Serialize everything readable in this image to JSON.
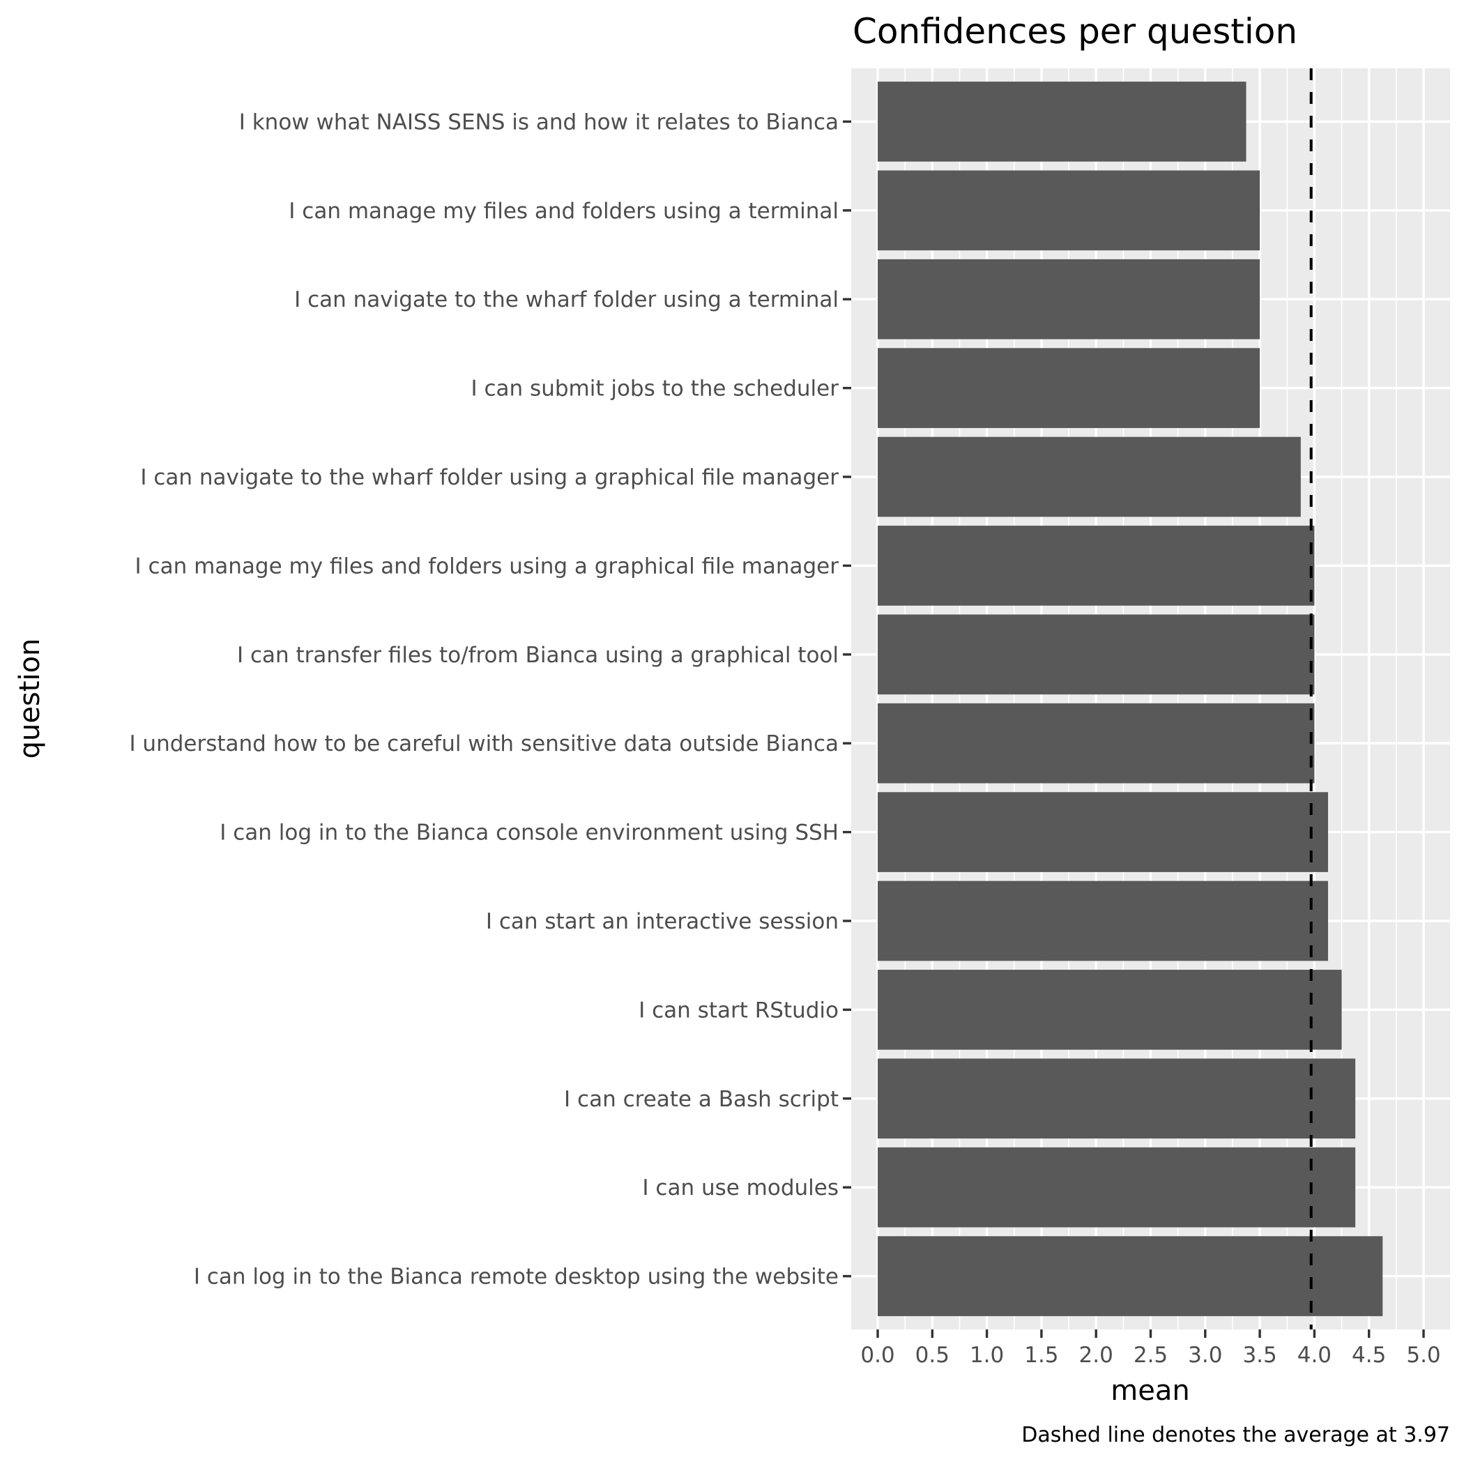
{
  "chart_data": {
    "type": "bar",
    "orientation": "horizontal",
    "title": "Confidences per question",
    "xlabel": "mean",
    "ylabel": "question",
    "caption": "Dashed line denotes the average at 3.97",
    "xlim": [
      0,
      5
    ],
    "x_ticks": [
      "0.0",
      "0.5",
      "1.0",
      "1.5",
      "2.0",
      "2.5",
      "3.0",
      "3.5",
      "4.0",
      "4.5",
      "5.0"
    ],
    "grid": true,
    "reference_line": {
      "value": 3.97,
      "style": "dashed",
      "color": "#000000"
    },
    "bar_color": "#595959",
    "panel_background": "#ebebeb",
    "categories": [
      "I know what NAISS SENS is and how it relates to Bianca",
      "I can manage my files and folders using a terminal",
      "I can navigate to the wharf folder using a terminal",
      "I can submit jobs to the scheduler",
      "I can navigate to the wharf folder using a graphical file manager",
      "I can manage my files and folders using a graphical file manager",
      "I can transfer files to/from Bianca using a graphical tool",
      "I understand how to be careful with sensitive data outside Bianca",
      "I can log in to the Bianca console environment using SSH",
      "I can start an interactive session",
      "I can start RStudio",
      "I can create a Bash script",
      "I can use modules",
      "I can log in to the Bianca remote desktop using the website"
    ],
    "values": [
      3.375,
      3.5,
      3.5,
      3.5,
      3.875,
      4.0,
      4.0,
      4.0,
      4.125,
      4.125,
      4.25,
      4.375,
      4.375,
      4.625
    ]
  }
}
